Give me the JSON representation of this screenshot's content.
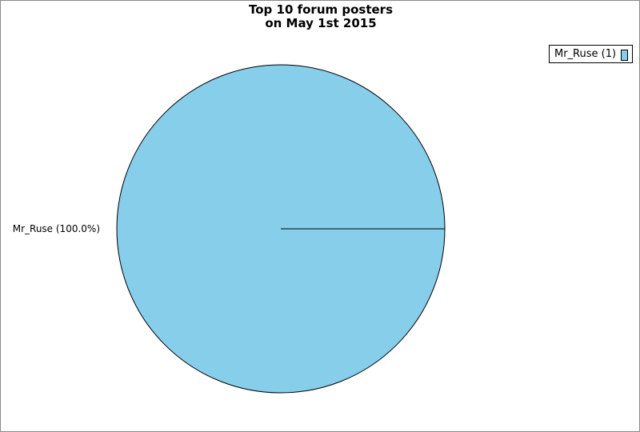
{
  "chart_data": {
    "type": "pie",
    "title_line1": "Top 10 forum posters",
    "title_line2": "on May 1st 2015",
    "slices": [
      {
        "label": "Mr_Ruse",
        "value": 1,
        "percent_label": "Mr_Ruse (100.0%)",
        "legend_label": "Mr_Ruse (1)",
        "color": "#87ceeb"
      }
    ],
    "legend_placement": "top-right"
  }
}
